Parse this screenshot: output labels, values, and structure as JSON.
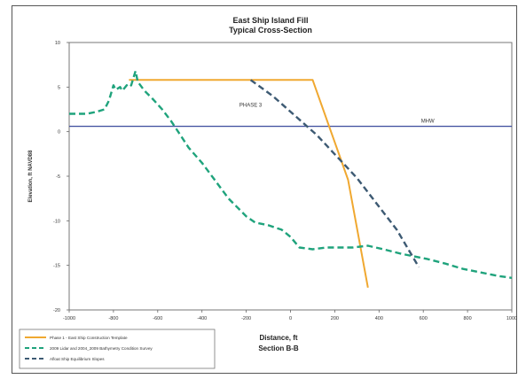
{
  "chart_data": {
    "type": "line",
    "title": "East Ship Island Fill",
    "subtitle": "Typical Cross-Section",
    "xlabel": "Distance, ft",
    "xlabel2": "Section B-B",
    "ylabel": "Elevation, ft NAVD88",
    "xlim": [
      -1000,
      1000
    ],
    "ylim": [
      -20,
      10
    ],
    "x_ticks": [
      "-1000",
      "-800",
      "-600",
      "-400",
      "-200",
      "0",
      "200",
      "400",
      "600",
      "800",
      "1000"
    ],
    "y_ticks": [
      "10",
      "5",
      "0",
      "-5",
      "-10",
      "-15",
      "-20"
    ],
    "annotations": [
      {
        "text": "PHASE 3",
        "x": -180,
        "y": 2.8
      },
      {
        "text": "MHW",
        "x": 620,
        "y": 1.0
      }
    ],
    "reference_line": {
      "label": "MHW",
      "y": 0.6,
      "color": "#3b4a9c"
    },
    "series": [
      {
        "name": "Phase 1 - East Ship Construction Template",
        "color": "#f0a830",
        "style": "solid",
        "x": [
          -730,
          100,
          260,
          350
        ],
        "y": [
          5.8,
          5.8,
          -5.4,
          -17.5
        ]
      },
      {
        "name": "2009 Lidar and 2004_2009 Bathymetry Condition Survey",
        "color": "#1fa37c",
        "style": "dashed",
        "x": [
          -1000,
          -960,
          -920,
          -880,
          -840,
          -820,
          -800,
          -790,
          -770,
          -760,
          -740,
          -730,
          -720,
          -700,
          -690,
          -660,
          -620,
          -580,
          -540,
          -500,
          -460,
          -400,
          -340,
          -280,
          -240,
          -200,
          -160,
          -100,
          -40,
          0,
          40,
          100,
          160,
          220,
          280,
          350,
          420,
          500,
          560,
          620,
          700,
          780,
          860,
          940,
          1000
        ],
        "y": [
          2.0,
          2.0,
          2.0,
          2.2,
          2.5,
          3.5,
          5.2,
          4.7,
          5.0,
          4.6,
          5.2,
          5.0,
          5.2,
          6.8,
          5.6,
          4.6,
          3.6,
          2.5,
          1.2,
          -0.3,
          -1.8,
          -3.5,
          -5.5,
          -7.5,
          -8.5,
          -9.5,
          -10.2,
          -10.5,
          -11.0,
          -11.8,
          -13.0,
          -13.2,
          -13.0,
          -13.0,
          -13.0,
          -12.8,
          -13.2,
          -13.7,
          -14.0,
          -14.3,
          -14.8,
          -15.4,
          -15.8,
          -16.2,
          -16.4
        ]
      },
      {
        "name": "Afloat Ship Equilibrium Slopes",
        "color": "#3d5a73",
        "style": "dashed",
        "x": [
          -180,
          -80,
          120,
          300,
          480,
          580
        ],
        "y": [
          5.8,
          4.0,
          -0.4,
          -5.2,
          -11.0,
          -15.2
        ]
      }
    ],
    "legend": {
      "position": "bottom-left",
      "entries": [
        "Phase 1 - East Ship Construction Template",
        "2009 Lidar and 2004_2009 Bathymetry Condition Survey",
        "Afloat Ship Equilibrium Slopes"
      ]
    },
    "grid": false
  }
}
